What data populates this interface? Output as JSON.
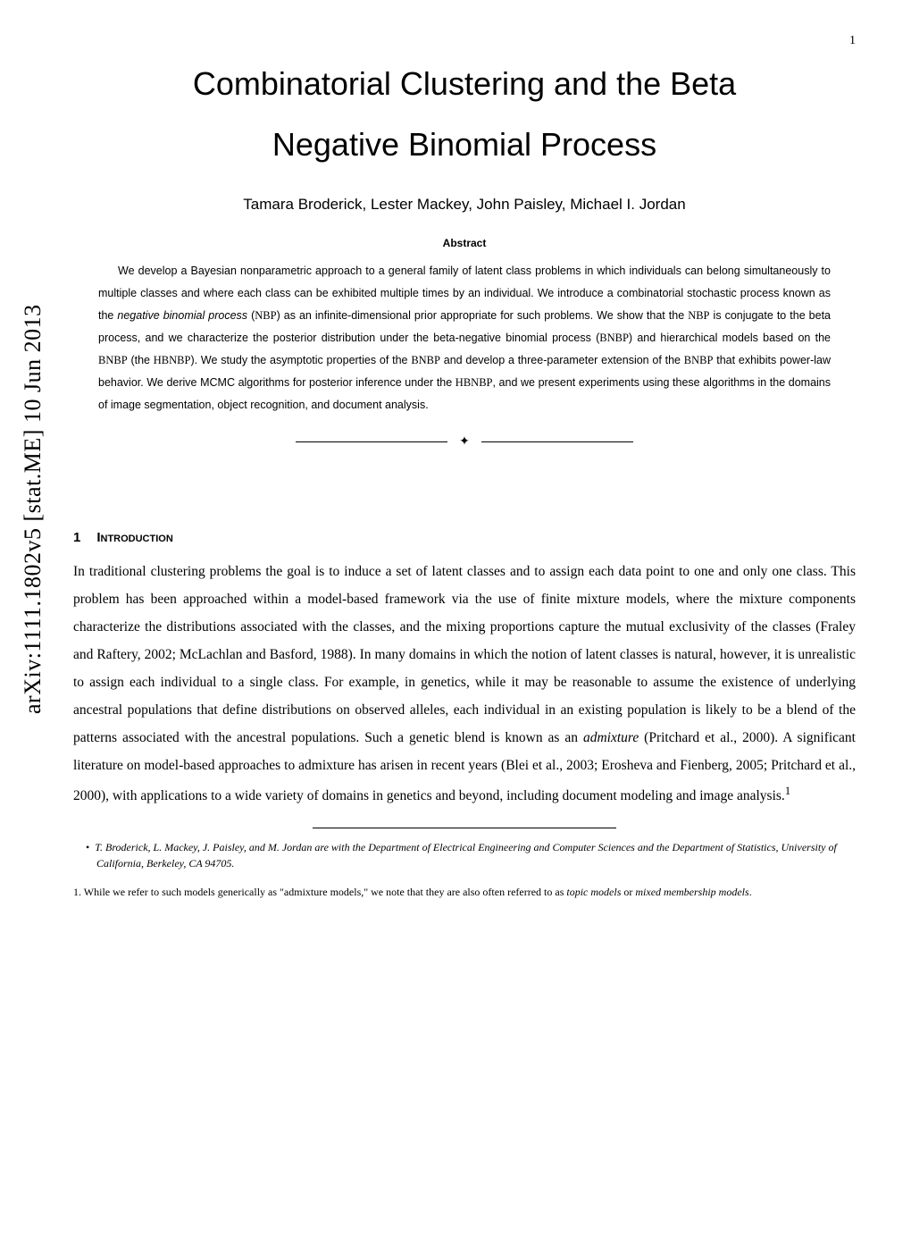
{
  "page_number": "1",
  "arxiv": "arXiv:1111.1802v5  [stat.ME]  10 Jun 2013",
  "title_line1": "Combinatorial Clustering and the Beta",
  "title_line2": "Negative Binomial Process",
  "authors": "Tamara Broderick, Lester Mackey, John Paisley, Michael I. Jordan",
  "abstract_label": "Abstract",
  "abstract_p1a": "We develop a Bayesian nonparametric approach to a general family of latent class problems in which individuals",
  "abstract_p1b": "can belong simultaneously to multiple classes and where each class can be exhibited multiple times by an individual. We introduce a combinatorial stochastic process known as the ",
  "abstract_em1": "negative binomial process",
  "abstract_p1c": " (",
  "abstract_sc1": "NBP",
  "abstract_p1d": ") as an infinite-dimensional prior appropriate for such problems. We show that the ",
  "abstract_sc2": "NBP",
  "abstract_p1e": " is conjugate to the beta process, and we characterize the posterior distribution under the beta-negative binomial process (",
  "abstract_sc3": "BNBP",
  "abstract_p1f": ") and hierarchical models based on the ",
  "abstract_sc4": "BNBP",
  "abstract_p1g": " (the ",
  "abstract_sc5": "HBNBP",
  "abstract_p1h": "). We study the asymptotic properties of the ",
  "abstract_sc6": "BNBP",
  "abstract_p1i": " and develop a three-parameter extension of the ",
  "abstract_sc7": "BNBP",
  "abstract_p1j": " that exhibits power-law behavior. We derive MCMC algorithms for posterior inference under the ",
  "abstract_sc8": "HBNBP",
  "abstract_p1k": ", and we present experiments using these algorithms in the domains of image segmentation, object recognition, and document analysis.",
  "separator_glyph": "✦",
  "section1_num": "1",
  "section1_title": "Introduction",
  "intro_a": "In traditional clustering problems the goal is to induce a set of latent classes and to assign each data point to one and only one class. This problem has been approached within a model-based framework via the use of finite mixture models, where the mixture components characterize the distributions associated with the classes, and the mixing proportions capture the mutual exclusivity of the classes (Fraley and Raftery, 2002; McLachlan and Basford, 1988). In many domains in which the notion of latent classes is natural, however, it is unrealistic to assign each individual to a single class. For example, in genetics, while it may be reasonable to assume the existence of underlying ancestral populations that define distributions on observed alleles, each individual in an existing population is likely to be a blend of the patterns associated with the ancestral populations. Such a genetic blend is known as an ",
  "intro_em1": "admixture",
  "intro_b": " (Pritchard et al., 2000). A significant literature on model-based approaches to admixture has arisen in recent years (Blei et al., 2003; Erosheva and Fienberg, 2005; Pritchard et al., 2000), with applications to a wide variety of domains in genetics and beyond, including document modeling and image analysis.",
  "intro_sup": "1",
  "affil_bullet": "•",
  "affil_text": "T. Broderick, L. Mackey, J. Paisley, and M. Jordan are with the Department of Electrical Engineering and Computer Sciences and the Department of Statistics, University of California, Berkeley, CA 94705.",
  "footnote1_a": "1. While we refer to such models generically as \"admixture models,\" we note that they are also often referred to as ",
  "footnote1_em1": "topic models",
  "footnote1_b": " or ",
  "footnote1_em2": "mixed membership models",
  "footnote1_c": "."
}
